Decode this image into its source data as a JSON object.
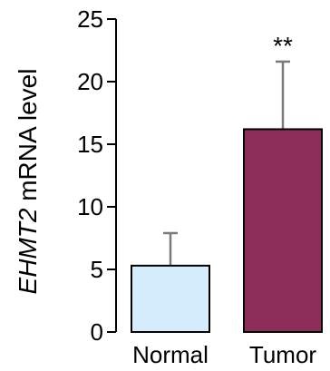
{
  "chart_data": {
    "type": "bar",
    "categories": [
      "Normal",
      "Tumor"
    ],
    "values": [
      5.3,
      16.2
    ],
    "error": [
      2.6,
      5.4
    ],
    "ylabel_italic": "EHMT2",
    "ylabel_rest": " mRNA level",
    "ylim": [
      0,
      25
    ],
    "yticks": [
      0,
      5,
      10,
      15,
      20,
      25
    ],
    "significance": [
      {
        "category": "Tumor",
        "label": "**"
      }
    ],
    "colors": {
      "Normal": "#d4ecfb",
      "Tumor": "#8c2d59"
    },
    "grid": false,
    "legend": "none"
  }
}
